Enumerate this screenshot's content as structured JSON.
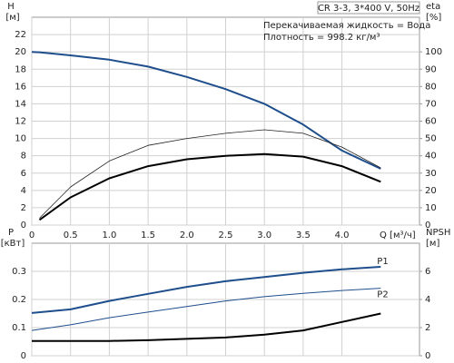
{
  "chart_data": [
    {
      "type": "line",
      "title": "CR 3-3, 3*400 V, 50Hz",
      "annotations": [
        "Перекачиваемая жидкость = Вода",
        "Плотность = 998.2 кг/м³"
      ],
      "ylabel": "H",
      "yunit": "[м]",
      "y2label": "eta",
      "y2unit": "[%]",
      "xlabel": "Q [м³/ч]",
      "x": [
        0,
        0.1,
        0.5,
        1.0,
        1.5,
        2.0,
        2.5,
        3.0,
        3.5,
        4.0,
        4.5
      ],
      "xlim": [
        0,
        5
      ],
      "xticks": [
        0,
        0.5,
        {
          "value": 1.0,
          "label": "1.0"
        },
        1.5,
        {
          "value": 2.0,
          "label": "2.0"
        },
        2.5,
        {
          "value": 3.0,
          "label": "3.0"
        },
        3.5,
        {
          "value": 4.0,
          "label": "4.0"
        }
      ],
      "ylim": [
        0,
        24
      ],
      "yticks": [
        0,
        2,
        4,
        6,
        8,
        10,
        12,
        14,
        16,
        18,
        20,
        22
      ],
      "y2lim": [
        0,
        120
      ],
      "y2ticks": [
        0,
        10,
        20,
        30,
        40,
        50,
        60,
        70,
        80,
        90,
        100
      ],
      "grid": true,
      "series": [
        {
          "color": "#1f4e8c",
          "width": 2,
          "values": [
            20,
            19.95,
            19.6,
            19.1,
            18.3,
            17.1,
            15.7,
            14.0,
            11.6,
            8.6,
            6.5
          ]
        },
        {
          "color": "#222222",
          "width": 0.8,
          "axis": "y2",
          "values": [
            null,
            4,
            22,
            37,
            46,
            50,
            53,
            55,
            53,
            45,
            33
          ]
        },
        {
          "color": "#000000",
          "width": 2,
          "axis": "y2",
          "values": [
            null,
            3,
            16,
            27,
            34,
            38,
            40,
            41,
            39.5,
            34,
            25
          ]
        }
      ]
    },
    {
      "type": "line",
      "ylabel": "P",
      "yunit": "[кВт]",
      "y2label": "NPSH",
      "y2unit": "[м]",
      "x": [
        0,
        0.5,
        1.0,
        1.5,
        2.0,
        2.5,
        3.0,
        3.5,
        4.0,
        4.5
      ],
      "xlim": [
        0,
        5
      ],
      "ylim": [
        0,
        0.4
      ],
      "yticks": [
        0,
        0.1,
        0.2,
        0.3
      ],
      "y2lim": [
        0,
        8
      ],
      "y2ticks": [
        0,
        2,
        4,
        6
      ],
      "grid": true,
      "series": [
        {
          "name": "P1",
          "color": "#1f4e8c",
          "width": 2,
          "values": [
            0.152,
            0.165,
            0.195,
            0.22,
            0.245,
            0.265,
            0.28,
            0.295,
            0.307,
            0.316
          ]
        },
        {
          "name": "P2",
          "color": "#1f4e8c",
          "width": 1,
          "values": [
            0.09,
            0.11,
            0.135,
            0.155,
            0.175,
            0.195,
            0.21,
            0.222,
            0.232,
            0.24
          ]
        },
        {
          "color": "#000000",
          "width": 2,
          "axis": "y2",
          "values": [
            1.05,
            1.05,
            1.05,
            1.1,
            1.2,
            1.3,
            1.5,
            1.8,
            2.4,
            3.0
          ]
        }
      ]
    }
  ]
}
